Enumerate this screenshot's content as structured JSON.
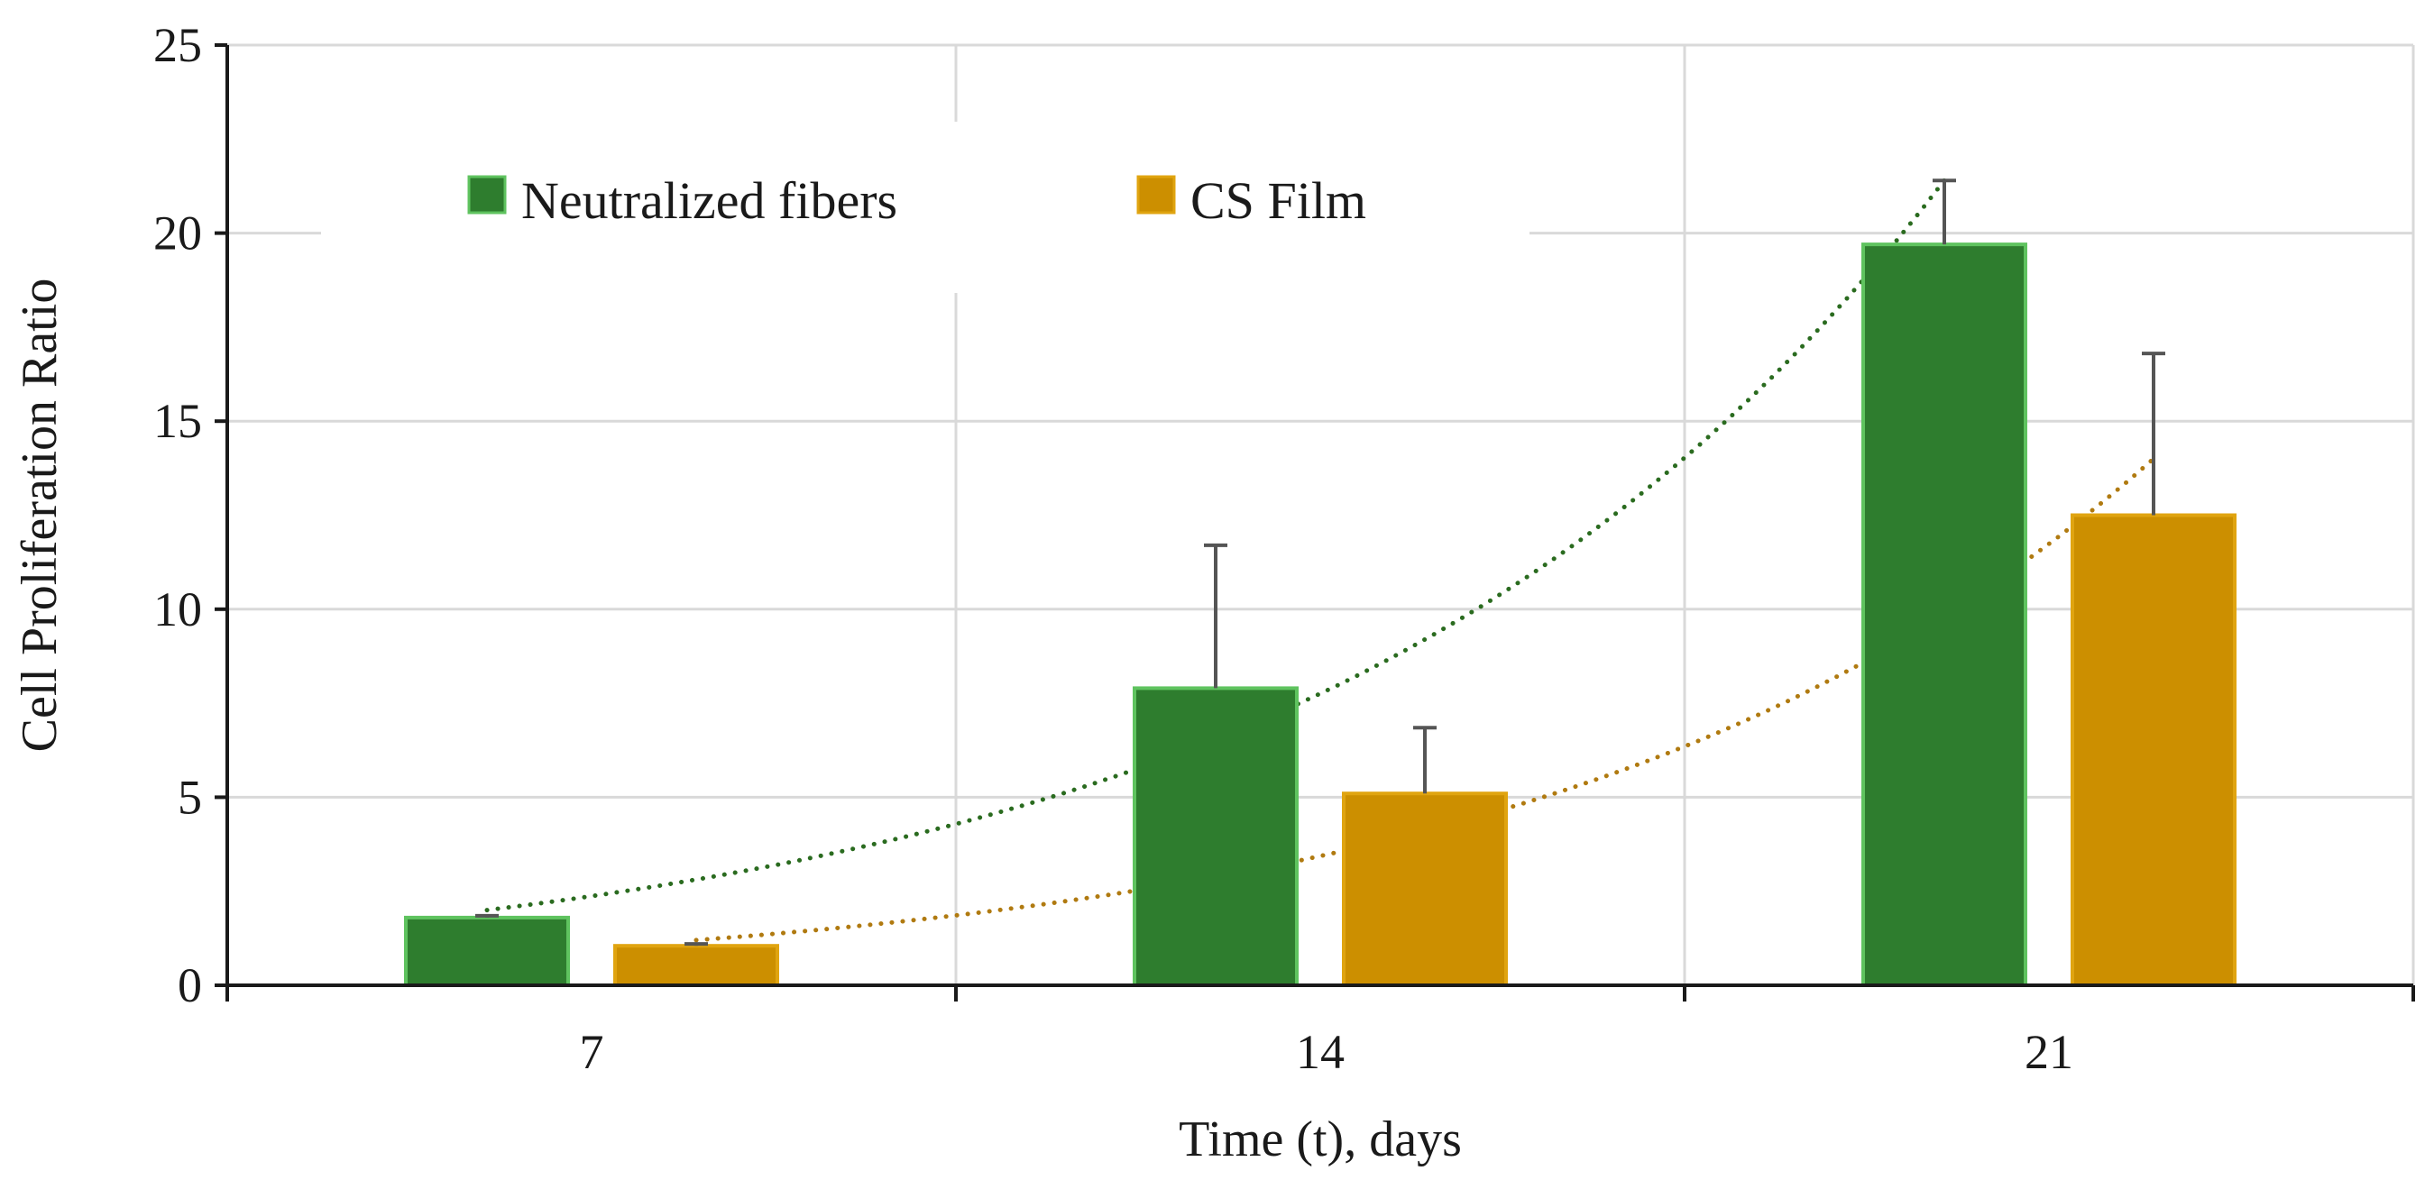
{
  "chart_data": {
    "type": "bar",
    "title": "",
    "xlabel": "Time (t), days",
    "ylabel": "Cell Proliferation Ratio",
    "categories": [
      "7",
      "14",
      "21"
    ],
    "ylim": [
      0,
      25
    ],
    "yticks": [
      0,
      5,
      10,
      15,
      20,
      25
    ],
    "grid": true,
    "legend_position": "top-left",
    "series": [
      {
        "name": "Neutralized fibers",
        "values": [
          1.8,
          7.9,
          19.7
        ],
        "errors": [
          0.05,
          3.8,
          1.7
        ],
        "color": "#2e7d2e",
        "edge_color": "#5fc35f",
        "trendline": {
          "type": "exponential",
          "color": "#2a6b1f",
          "style": "dotted",
          "start_value": 2.0,
          "end_value": 21.4
        }
      },
      {
        "name": "CS Film",
        "values": [
          1.05,
          5.1,
          12.5
        ],
        "errors": [
          0.05,
          1.75,
          4.3
        ],
        "color": "#cc8f00",
        "edge_color": "#e0a410",
        "trendline": {
          "type": "exponential",
          "color": "#b07a10",
          "style": "dotted",
          "start_value": 1.2,
          "end_value": 14.0
        }
      }
    ],
    "colors": {
      "grid": "#d9d9d9",
      "axis": "#1a1a1a",
      "error_bar": "#555555"
    }
  }
}
